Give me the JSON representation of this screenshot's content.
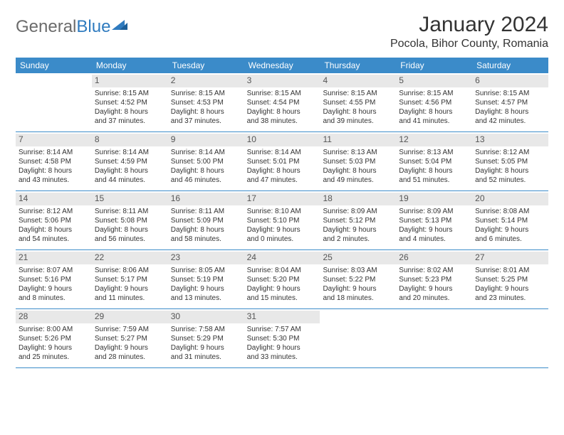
{
  "logo": {
    "text_gray": "General",
    "text_blue": "Blue"
  },
  "title": "January 2024",
  "location": "Pocola, Bihor County, Romania",
  "style": {
    "header_bg": "#3b8bc9",
    "header_text": "#ffffff",
    "daynum_bg": "#e8e8e8",
    "border": "#3b8bc9",
    "body_text": "#333333",
    "logo_gray": "#6b6b6b",
    "logo_blue": "#2f7bbf",
    "page_bg": "#ffffff",
    "title_fontsize": 30,
    "location_fontsize": 16,
    "weekday_fontsize": 12,
    "cell_fontsize": 10
  },
  "weekdays": [
    "Sunday",
    "Monday",
    "Tuesday",
    "Wednesday",
    "Thursday",
    "Friday",
    "Saturday"
  ],
  "weeks": [
    [
      null,
      {
        "n": "1",
        "sr": "Sunrise: 8:15 AM",
        "ss": "Sunset: 4:52 PM",
        "d1": "Daylight: 8 hours",
        "d2": "and 37 minutes."
      },
      {
        "n": "2",
        "sr": "Sunrise: 8:15 AM",
        "ss": "Sunset: 4:53 PM",
        "d1": "Daylight: 8 hours",
        "d2": "and 37 minutes."
      },
      {
        "n": "3",
        "sr": "Sunrise: 8:15 AM",
        "ss": "Sunset: 4:54 PM",
        "d1": "Daylight: 8 hours",
        "d2": "and 38 minutes."
      },
      {
        "n": "4",
        "sr": "Sunrise: 8:15 AM",
        "ss": "Sunset: 4:55 PM",
        "d1": "Daylight: 8 hours",
        "d2": "and 39 minutes."
      },
      {
        "n": "5",
        "sr": "Sunrise: 8:15 AM",
        "ss": "Sunset: 4:56 PM",
        "d1": "Daylight: 8 hours",
        "d2": "and 41 minutes."
      },
      {
        "n": "6",
        "sr": "Sunrise: 8:15 AM",
        "ss": "Sunset: 4:57 PM",
        "d1": "Daylight: 8 hours",
        "d2": "and 42 minutes."
      }
    ],
    [
      {
        "n": "7",
        "sr": "Sunrise: 8:14 AM",
        "ss": "Sunset: 4:58 PM",
        "d1": "Daylight: 8 hours",
        "d2": "and 43 minutes."
      },
      {
        "n": "8",
        "sr": "Sunrise: 8:14 AM",
        "ss": "Sunset: 4:59 PM",
        "d1": "Daylight: 8 hours",
        "d2": "and 44 minutes."
      },
      {
        "n": "9",
        "sr": "Sunrise: 8:14 AM",
        "ss": "Sunset: 5:00 PM",
        "d1": "Daylight: 8 hours",
        "d2": "and 46 minutes."
      },
      {
        "n": "10",
        "sr": "Sunrise: 8:14 AM",
        "ss": "Sunset: 5:01 PM",
        "d1": "Daylight: 8 hours",
        "d2": "and 47 minutes."
      },
      {
        "n": "11",
        "sr": "Sunrise: 8:13 AM",
        "ss": "Sunset: 5:03 PM",
        "d1": "Daylight: 8 hours",
        "d2": "and 49 minutes."
      },
      {
        "n": "12",
        "sr": "Sunrise: 8:13 AM",
        "ss": "Sunset: 5:04 PM",
        "d1": "Daylight: 8 hours",
        "d2": "and 51 minutes."
      },
      {
        "n": "13",
        "sr": "Sunrise: 8:12 AM",
        "ss": "Sunset: 5:05 PM",
        "d1": "Daylight: 8 hours",
        "d2": "and 52 minutes."
      }
    ],
    [
      {
        "n": "14",
        "sr": "Sunrise: 8:12 AM",
        "ss": "Sunset: 5:06 PM",
        "d1": "Daylight: 8 hours",
        "d2": "and 54 minutes."
      },
      {
        "n": "15",
        "sr": "Sunrise: 8:11 AM",
        "ss": "Sunset: 5:08 PM",
        "d1": "Daylight: 8 hours",
        "d2": "and 56 minutes."
      },
      {
        "n": "16",
        "sr": "Sunrise: 8:11 AM",
        "ss": "Sunset: 5:09 PM",
        "d1": "Daylight: 8 hours",
        "d2": "and 58 minutes."
      },
      {
        "n": "17",
        "sr": "Sunrise: 8:10 AM",
        "ss": "Sunset: 5:10 PM",
        "d1": "Daylight: 9 hours",
        "d2": "and 0 minutes."
      },
      {
        "n": "18",
        "sr": "Sunrise: 8:09 AM",
        "ss": "Sunset: 5:12 PM",
        "d1": "Daylight: 9 hours",
        "d2": "and 2 minutes."
      },
      {
        "n": "19",
        "sr": "Sunrise: 8:09 AM",
        "ss": "Sunset: 5:13 PM",
        "d1": "Daylight: 9 hours",
        "d2": "and 4 minutes."
      },
      {
        "n": "20",
        "sr": "Sunrise: 8:08 AM",
        "ss": "Sunset: 5:14 PM",
        "d1": "Daylight: 9 hours",
        "d2": "and 6 minutes."
      }
    ],
    [
      {
        "n": "21",
        "sr": "Sunrise: 8:07 AM",
        "ss": "Sunset: 5:16 PM",
        "d1": "Daylight: 9 hours",
        "d2": "and 8 minutes."
      },
      {
        "n": "22",
        "sr": "Sunrise: 8:06 AM",
        "ss": "Sunset: 5:17 PM",
        "d1": "Daylight: 9 hours",
        "d2": "and 11 minutes."
      },
      {
        "n": "23",
        "sr": "Sunrise: 8:05 AM",
        "ss": "Sunset: 5:19 PM",
        "d1": "Daylight: 9 hours",
        "d2": "and 13 minutes."
      },
      {
        "n": "24",
        "sr": "Sunrise: 8:04 AM",
        "ss": "Sunset: 5:20 PM",
        "d1": "Daylight: 9 hours",
        "d2": "and 15 minutes."
      },
      {
        "n": "25",
        "sr": "Sunrise: 8:03 AM",
        "ss": "Sunset: 5:22 PM",
        "d1": "Daylight: 9 hours",
        "d2": "and 18 minutes."
      },
      {
        "n": "26",
        "sr": "Sunrise: 8:02 AM",
        "ss": "Sunset: 5:23 PM",
        "d1": "Daylight: 9 hours",
        "d2": "and 20 minutes."
      },
      {
        "n": "27",
        "sr": "Sunrise: 8:01 AM",
        "ss": "Sunset: 5:25 PM",
        "d1": "Daylight: 9 hours",
        "d2": "and 23 minutes."
      }
    ],
    [
      {
        "n": "28",
        "sr": "Sunrise: 8:00 AM",
        "ss": "Sunset: 5:26 PM",
        "d1": "Daylight: 9 hours",
        "d2": "and 25 minutes."
      },
      {
        "n": "29",
        "sr": "Sunrise: 7:59 AM",
        "ss": "Sunset: 5:27 PM",
        "d1": "Daylight: 9 hours",
        "d2": "and 28 minutes."
      },
      {
        "n": "30",
        "sr": "Sunrise: 7:58 AM",
        "ss": "Sunset: 5:29 PM",
        "d1": "Daylight: 9 hours",
        "d2": "and 31 minutes."
      },
      {
        "n": "31",
        "sr": "Sunrise: 7:57 AM",
        "ss": "Sunset: 5:30 PM",
        "d1": "Daylight: 9 hours",
        "d2": "and 33 minutes."
      },
      null,
      null,
      null
    ]
  ]
}
